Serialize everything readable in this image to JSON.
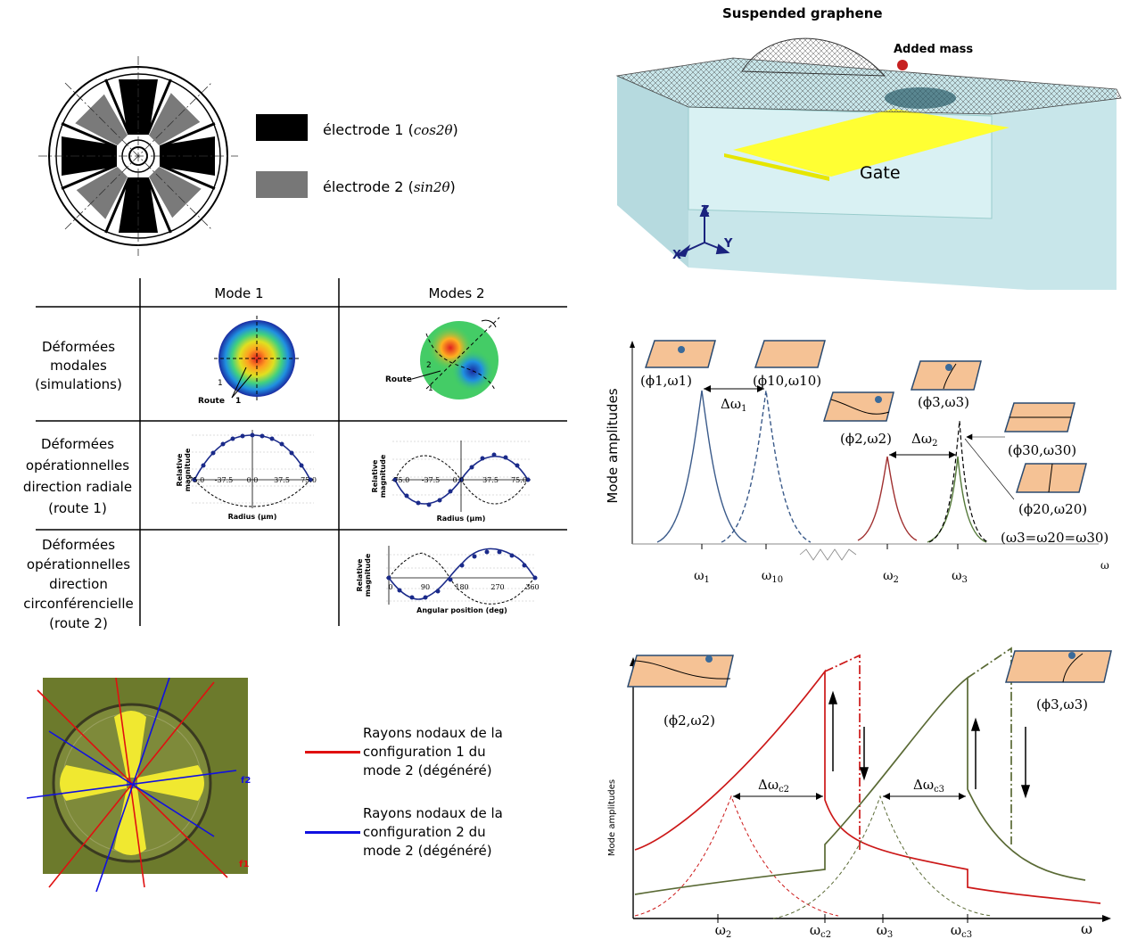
{
  "electrode_legend": [
    {
      "label": "électrode 1 (",
      "math": "cos2θ",
      "close": ")",
      "color": "#000000"
    },
    {
      "label": "électrode 2 (",
      "math": "sin2θ",
      "close": ")",
      "color": "#777777"
    }
  ],
  "graphene": {
    "title": "Suspended graphene",
    "added_mass": "Added mass",
    "gate": "Gate",
    "axes": {
      "z": "Z",
      "y": "Y",
      "x": "X"
    }
  },
  "mode_table": {
    "col_headers": [
      "Mode 1",
      "Modes 2"
    ],
    "row_headers": [
      "Déformées\nmodales\n(simulations)",
      "Déformées\nopérationnelles\ndirection radiale\n(route 1)",
      "Déformées\nopérationnelles\ndirection\ncirconférencielle\n(route 2)"
    ],
    "sim_labels": {
      "route": "Route",
      "one": "1",
      "two": "2"
    },
    "radial_plot": {
      "ylabel": "Relative\nmagnitude",
      "xlabel": "Radius (µm)",
      "ticks": [
        "-75.0",
        "-37.5",
        "0.0",
        "37.5",
        "75.0"
      ]
    },
    "angular_plot": {
      "ylabel": "Relative\nmagnitude",
      "xlabel": "Angular position (deg)",
      "ticks": [
        "0",
        "90",
        "180",
        "270",
        "360"
      ]
    }
  },
  "mode_amp_chart": {
    "ylabel": "Mode amplitudes",
    "xlabel": "ω",
    "x_ticks": [
      "ω1",
      "ω10",
      "ω2",
      "ω3"
    ],
    "labels": {
      "p11": "(ϕ1,ω1)",
      "p1010": "(ϕ10,ω10)",
      "p22": "(ϕ2,ω2)",
      "p33": "(ϕ3,ω3)",
      "p3030": "(ϕ30,ω30)",
      "p2020": "(ϕ20,ω20)",
      "eq": "(ω3=ω20=ω30)",
      "dw1": "Δω1",
      "dw2": "Δω2"
    }
  },
  "nodal": {
    "f1": "f1",
    "f2": "f2",
    "legend": [
      {
        "text": "Rayons nodaux de la\nconfiguration 1 du\nmode 2 (dégénéré)",
        "color": "#e01010"
      },
      {
        "text": "Rayons nodaux de la\nconfiguration 2 du\nmode 2 (dégénéré)",
        "color": "#1010e0"
      }
    ]
  },
  "nonlinear_chart": {
    "ylabel": "Mode amplitudes",
    "xlabel": "ω",
    "x_ticks": [
      "ω2",
      "ωc2",
      "ω3",
      "ωc3"
    ],
    "labels": {
      "p22": "(ϕ2,ω2)",
      "p33": "(ϕ3,ω3)",
      "dwc2": "Δωc2",
      "dwc3": "Δωc3"
    }
  }
}
